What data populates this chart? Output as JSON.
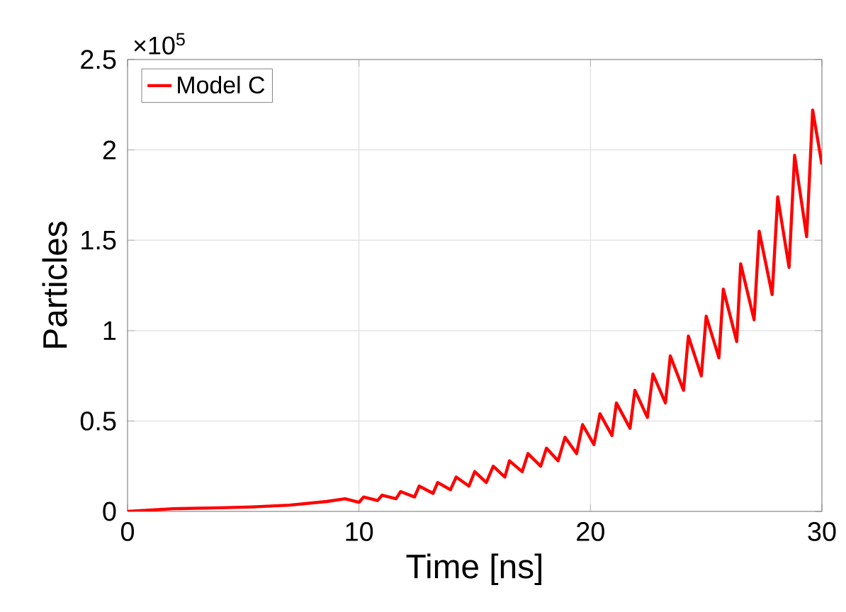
{
  "chart_data": {
    "type": "line",
    "xlabel": "Time [ns]",
    "ylabel": "Particles",
    "annotations": [
      "×10$^{5}$"
    ],
    "xlim": [
      0,
      30
    ],
    "ylim": [
      0,
      2.5
    ],
    "xticks": [
      0,
      10,
      20,
      30
    ],
    "yticks": [
      0,
      0.5,
      1,
      1.5,
      2,
      2.5
    ],
    "grid": true,
    "legend": "top left",
    "line_style": "solid",
    "marker": "none",
    "series": [
      {
        "name": "Model C",
        "color": "#ff0000",
        "x": [
          0,
          2,
          4,
          5.4,
          6.2,
          7.0,
          7.8,
          8.6,
          9.4,
          10.0,
          10.2,
          10.8,
          11.0,
          11.6,
          11.8,
          12.4,
          12.6,
          13.2,
          13.4,
          13.95,
          14.2,
          14.75,
          15.0,
          15.5,
          15.8,
          16.3,
          16.5,
          17.05,
          17.3,
          17.85,
          18.1,
          18.6,
          18.9,
          19.4,
          19.66,
          20.15,
          20.41,
          20.93,
          21.12,
          21.71,
          21.92,
          22.46,
          22.7,
          23.24,
          23.45,
          24.02,
          24.23,
          24.79,
          25.0,
          25.55,
          25.74,
          26.32,
          26.49,
          27.07,
          27.29,
          27.85,
          28.09,
          28.58,
          28.82,
          29.34,
          29.6,
          30
        ],
        "values": [
          0,
          0.015,
          0.02,
          0.025,
          0.03,
          0.035,
          0.045,
          0.055,
          0.07,
          0.05,
          0.08,
          0.06,
          0.09,
          0.07,
          0.11,
          0.08,
          0.14,
          0.1,
          0.16,
          0.12,
          0.19,
          0.14,
          0.22,
          0.16,
          0.25,
          0.19,
          0.28,
          0.22,
          0.32,
          0.25,
          0.35,
          0.28,
          0.41,
          0.32,
          0.48,
          0.37,
          0.54,
          0.42,
          0.6,
          0.46,
          0.67,
          0.52,
          0.76,
          0.6,
          0.86,
          0.67,
          0.97,
          0.75,
          1.08,
          0.85,
          1.23,
          0.94,
          1.37,
          1.06,
          1.55,
          1.2,
          1.74,
          1.35,
          1.97,
          1.52,
          2.22,
          1.92
        ]
      }
    ]
  }
}
